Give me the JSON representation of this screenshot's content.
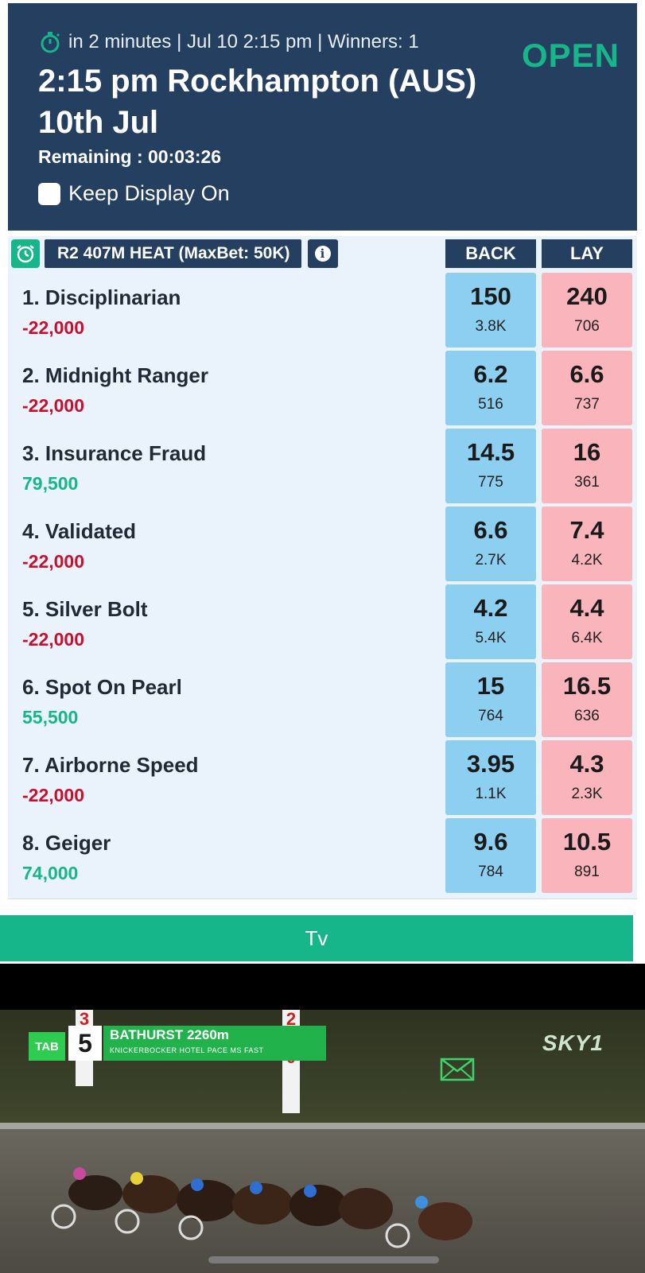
{
  "header": {
    "meta": "in 2 minutes | Jul 10 2:15 pm | Winners: 1",
    "title": "2:15 pm Rockhampton (AUS) 10th Jul",
    "status": "OPEN",
    "remaining": "Remaining : 00:03:26",
    "keep_display_label": "Keep Display On",
    "keep_display_checked": false
  },
  "market": {
    "label": "R2 407M HEAT (MaxBet: 50K)",
    "back_label": "BACK",
    "lay_label": "LAY"
  },
  "runners": [
    {
      "name": "1. Disciplinarian",
      "pnl": "-22,000",
      "pnl_sign": "neg",
      "back_price": "150",
      "back_size": "3.8K",
      "lay_price": "240",
      "lay_size": "706"
    },
    {
      "name": "2. Midnight Ranger",
      "pnl": "-22,000",
      "pnl_sign": "neg",
      "back_price": "6.2",
      "back_size": "516",
      "lay_price": "6.6",
      "lay_size": "737"
    },
    {
      "name": "3. Insurance Fraud",
      "pnl": "79,500",
      "pnl_sign": "pos",
      "back_price": "14.5",
      "back_size": "775",
      "lay_price": "16",
      "lay_size": "361"
    },
    {
      "name": "4. Validated",
      "pnl": "-22,000",
      "pnl_sign": "neg",
      "back_price": "6.6",
      "back_size": "2.7K",
      "lay_price": "7.4",
      "lay_size": "4.2K"
    },
    {
      "name": "5. Silver Bolt",
      "pnl": "-22,000",
      "pnl_sign": "neg",
      "back_price": "4.2",
      "back_size": "5.4K",
      "lay_price": "4.4",
      "lay_size": "6.4K"
    },
    {
      "name": "6. Spot On Pearl",
      "pnl": "55,500",
      "pnl_sign": "pos",
      "back_price": "15",
      "back_size": "764",
      "lay_price": "16.5",
      "lay_size": "636"
    },
    {
      "name": "7. Airborne Speed",
      "pnl": "-22,000",
      "pnl_sign": "neg",
      "back_price": "3.95",
      "back_size": "1.1K",
      "lay_price": "4.3",
      "lay_size": "2.3K"
    },
    {
      "name": "8. Geiger",
      "pnl": "74,000",
      "pnl_sign": "pos",
      "back_price": "9.6",
      "back_size": "784",
      "lay_price": "10.5",
      "lay_size": "891"
    }
  ],
  "tv": {
    "button_label": "Tv",
    "overlay": {
      "tab": "TAB",
      "race_number": "5",
      "venue": "BATHURST  2260m",
      "subtitle": "KNICKERBOCKER HOTEL PACE MS   FAST",
      "channel": "SKY1",
      "post_left": "3 0",
      "post_right": "2 6 0"
    }
  },
  "colors": {
    "header_bg": "#243f5f",
    "accent_green": "#17b58a",
    "back_blue": "#8dcff0",
    "lay_pink": "#f9b4bc",
    "loss_red": "#c8102e",
    "panel_bg": "#eaf3fb"
  }
}
